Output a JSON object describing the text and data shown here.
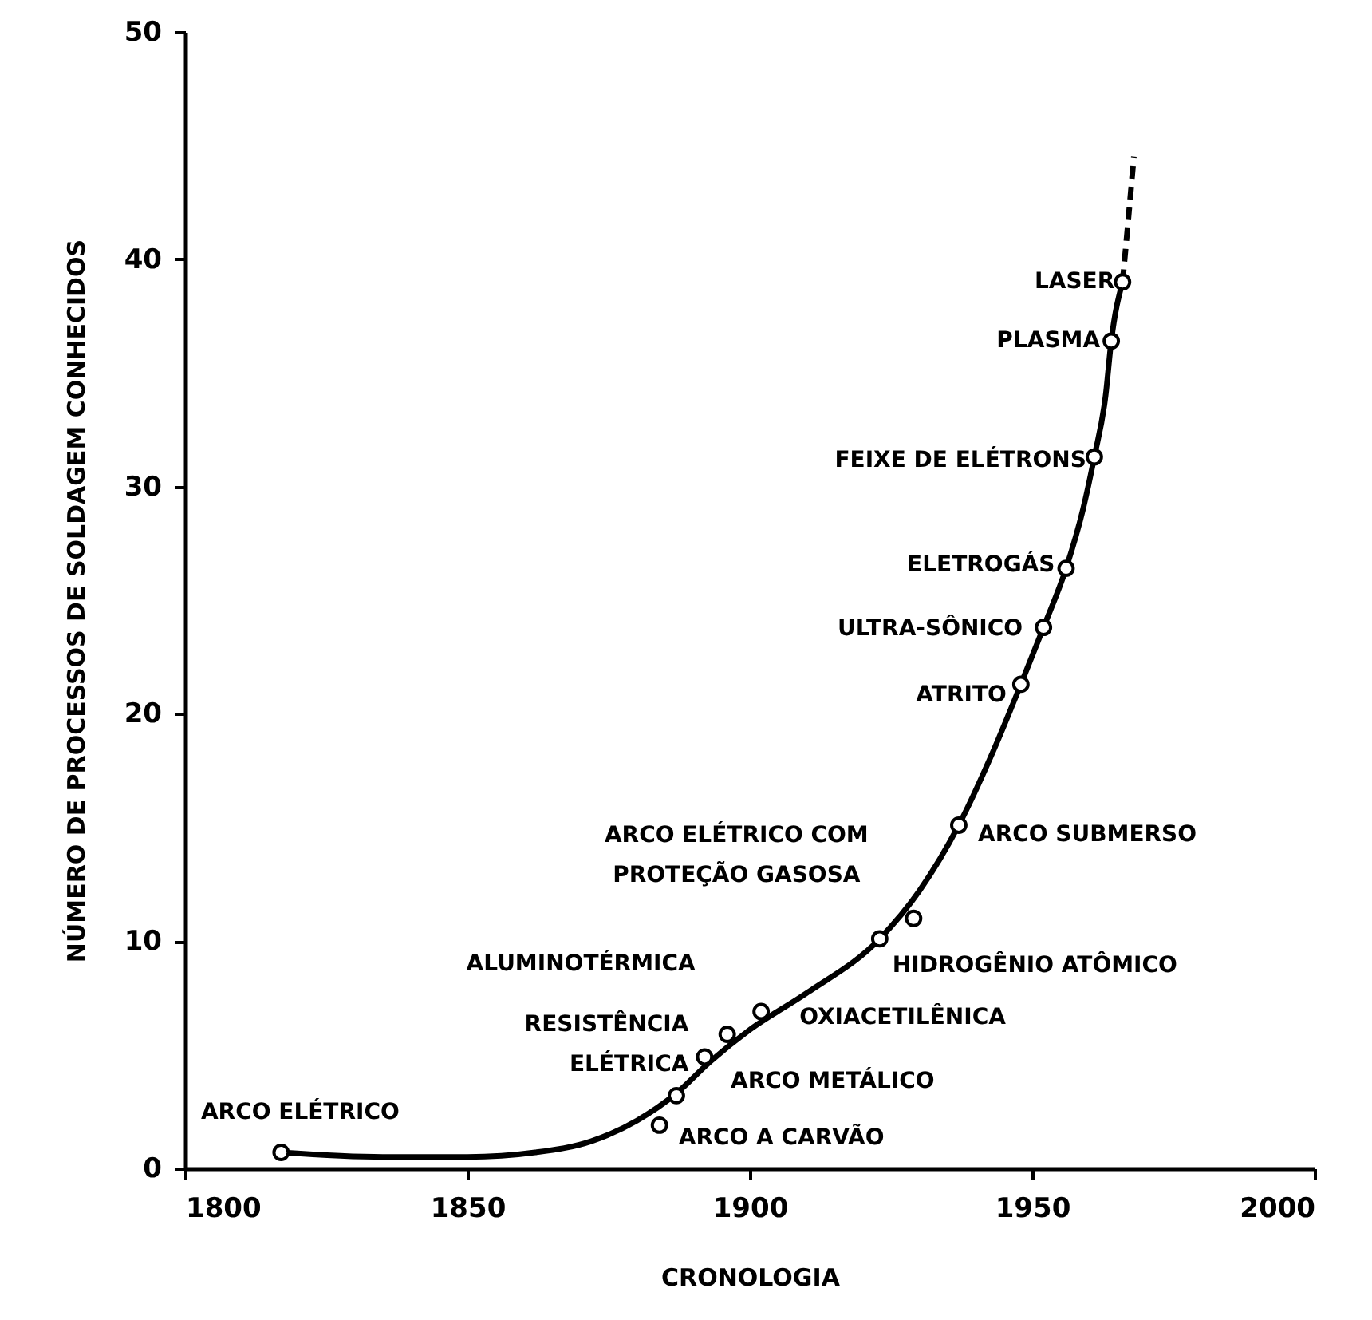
{
  "chart_data": {
    "type": "scatter",
    "xlabel": "CRONOLOGIA",
    "ylabel": "NÚMERO DE PROCESSOS DE SOLDAGEM CONHECIDOS",
    "xlim": [
      1800,
      2000
    ],
    "ylim": [
      0,
      50
    ],
    "xticks": [
      1800,
      1850,
      1900,
      1950,
      2000
    ],
    "yticks": [
      0,
      10,
      20,
      30,
      40,
      50
    ],
    "grid": false,
    "series": [
      {
        "type": "line",
        "color": "#000000",
        "line_style": "solid",
        "x": [
          1817,
          1835,
          1850,
          1862,
          1872,
          1880,
          1887,
          1893,
          1900,
          1910,
          1923,
          1930,
          1937,
          1943,
          1948,
          1952,
          1956,
          1959,
          1961,
          1963,
          1964,
          1966
        ],
        "values": [
          0.7,
          0.5,
          0.5,
          0.7,
          1.2,
          2.1,
          3.3,
          4.7,
          6.1,
          7.7,
          10.1,
          12.2,
          15.1,
          18.3,
          21.3,
          23.8,
          26.4,
          29.0,
          31.3,
          34.0,
          36.4,
          39.0
        ]
      },
      {
        "type": "line",
        "color": "#000000",
        "line_style": "dashed",
        "x": [
          1966,
          1967,
          1968
        ],
        "values": [
          39.0,
          41.7,
          44.5
        ]
      },
      {
        "color": "#000000",
        "marker": "circle",
        "x": [
          1817,
          1884,
          1887,
          1892,
          1896,
          1902,
          1923,
          1929,
          1937,
          1948,
          1952,
          1956,
          1961,
          1964,
          1966
        ],
        "values": [
          0.7,
          1.9,
          3.2,
          4.9,
          5.9,
          6.9,
          10.1,
          11.0,
          15.1,
          21.3,
          23.8,
          26.4,
          31.3,
          36.4,
          39.0
        ]
      }
    ],
    "annotations": [
      {
        "text": "ARCO ELÉTRICO",
        "x": 1817,
        "y": 0.7
      },
      {
        "text": "ARCO A CARVÃO",
        "x": 1884,
        "y": 1.9
      },
      {
        "text": "ARCO METÁLICO",
        "x": 1887,
        "y": 3.2
      },
      {
        "text": "RESISTÊNCIA\nELÉTRICA",
        "x": 1892,
        "y": 4.9
      },
      {
        "text": "ALUMINOTÉRMICA",
        "x": 1896,
        "y": 5.9
      },
      {
        "text": "OXIACETILÊNICA",
        "x": 1902,
        "y": 6.9
      },
      {
        "text": "HIDROGÊNIO ATÔMICO",
        "x": 1923,
        "y": 10.1
      },
      {
        "text": "ARCO ELÉTRICO COM\nPROTEÇÃO GASOSA",
        "x": 1929,
        "y": 11.0
      },
      {
        "text": "ARCO SUBMERSO",
        "x": 1937,
        "y": 15.1
      },
      {
        "text": "ATRITO",
        "x": 1948,
        "y": 21.3
      },
      {
        "text": "ULTRA-SÔNICO",
        "x": 1952,
        "y": 23.8
      },
      {
        "text": "ELETROGÁS",
        "x": 1956,
        "y": 26.4
      },
      {
        "text": "FEIXE DE ELÉTRONS",
        "x": 1961,
        "y": 31.3
      },
      {
        "text": "PLASMA",
        "x": 1964,
        "y": 36.4
      },
      {
        "text": "LASER",
        "x": 1966,
        "y": 39.0
      }
    ]
  }
}
